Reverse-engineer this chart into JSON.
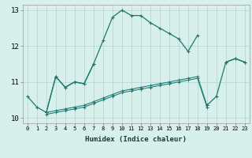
{
  "xlabel": "Humidex (Indice chaleur)",
  "x": [
    0,
    1,
    2,
    3,
    4,
    5,
    6,
    7,
    8,
    9,
    10,
    11,
    12,
    13,
    14,
    15,
    16,
    17,
    18,
    19,
    20,
    21,
    22,
    23
  ],
  "line1": [
    10.6,
    10.3,
    10.15,
    11.15,
    10.85,
    11.0,
    10.95,
    11.5,
    12.15,
    12.8,
    13.0,
    12.85,
    12.85,
    12.65,
    12.5,
    12.35,
    12.2,
    11.85,
    12.3,
    null,
    null,
    11.55,
    11.65,
    11.55
  ],
  "line2": [
    null,
    null,
    10.15,
    11.15,
    10.85,
    11.0,
    10.95,
    11.5,
    null,
    null,
    null,
    null,
    null,
    null,
    null,
    null,
    null,
    null,
    null,
    10.35,
    10.6,
    11.55,
    11.65,
    11.55
  ],
  "line3": [
    null,
    null,
    10.15,
    10.2,
    10.25,
    10.3,
    10.35,
    10.45,
    10.55,
    10.65,
    10.75,
    10.8,
    10.85,
    10.9,
    10.95,
    11.0,
    11.05,
    11.1,
    11.15,
    10.35,
    null,
    null,
    null,
    null
  ],
  "line4": [
    null,
    null,
    10.1,
    10.15,
    10.2,
    10.25,
    10.3,
    10.4,
    10.5,
    10.6,
    10.7,
    10.75,
    10.8,
    10.85,
    10.9,
    10.95,
    11.0,
    11.05,
    11.1,
    10.3,
    null,
    null,
    null,
    null
  ],
  "color": "#1a7a6e",
  "bg_color": "#d8f0ec",
  "grid_color": "#aed6d0",
  "ylim": [
    9.85,
    13.15
  ],
  "yticks": [
    10,
    11,
    12,
    13
  ],
  "xticks": [
    0,
    1,
    2,
    3,
    4,
    5,
    6,
    7,
    8,
    9,
    10,
    11,
    12,
    13,
    14,
    15,
    16,
    17,
    18,
    19,
    20,
    21,
    22,
    23
  ]
}
